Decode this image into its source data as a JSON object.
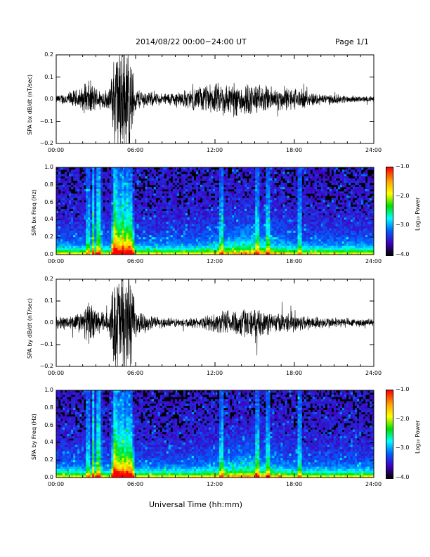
{
  "header": {
    "date_range": "2014/08/22  00:00−24:00 UT",
    "page": "Page 1/1"
  },
  "footer": {
    "xaxis_label": "Universal Time (hh:mm)"
  },
  "chart_data": [
    {
      "type": "line",
      "ylabel": "SPA bx dB/dt (nT/sec)",
      "x_ticks": [
        "00:00",
        "06:00",
        "12:00",
        "18:00",
        "24:00"
      ],
      "xlim": [
        0,
        24
      ],
      "y_ticks": [
        "0.2",
        "0.1",
        "0.0",
        "−0.1",
        "−0.2"
      ],
      "ylim": [
        -0.2,
        0.2
      ],
      "envelope": {
        "hours": [
          0,
          1,
          2,
          2.5,
          3,
          4,
          4.5,
          5,
          5.5,
          6,
          7,
          8,
          9,
          10,
          11,
          12,
          13,
          14,
          15,
          16,
          17,
          18,
          19,
          20,
          21,
          22,
          23,
          24
        ],
        "amplitude": [
          0.02,
          0.04,
          0.06,
          0.1,
          0.06,
          0.05,
          0.3,
          0.3,
          0.3,
          0.06,
          0.04,
          0.03,
          0.04,
          0.05,
          0.07,
          0.08,
          0.09,
          0.09,
          0.08,
          0.07,
          0.06,
          0.06,
          0.04,
          0.03,
          0.025,
          0.02,
          0.015,
          0.015
        ]
      }
    },
    {
      "type": "heatmap",
      "ylabel": "SPA bx Freq (Hz)",
      "x_ticks": [
        "00:00",
        "06:00",
        "12:00",
        "18:00",
        "24:00"
      ],
      "xlim": [
        0,
        24
      ],
      "y_ticks": [
        "1.0",
        "0.8",
        "0.6",
        "0.4",
        "0.2",
        "0.0"
      ],
      "ylim": [
        0,
        1
      ],
      "colorbar": {
        "label": "Log₁₀ Power",
        "ticks": [
          "−1.0",
          "−2.0",
          "−3.0",
          "−4.0"
        ],
        "range": [
          -4,
          -1
        ]
      }
    },
    {
      "type": "line",
      "ylabel": "SPA by dB/dt (nT/sec)",
      "x_ticks": [
        "00:00",
        "06:00",
        "12:00",
        "18:00",
        "24:00"
      ],
      "xlim": [
        0,
        24
      ],
      "y_ticks": [
        "0.2",
        "0.1",
        "0.0",
        "−0.1",
        "−0.2"
      ],
      "ylim": [
        -0.2,
        0.2
      ],
      "envelope": {
        "hours": [
          0,
          1,
          2,
          2.5,
          3,
          4,
          4.5,
          5,
          5.5,
          6,
          7,
          8,
          9,
          10,
          11,
          12,
          13,
          14,
          15,
          16,
          17,
          18,
          19,
          20,
          21,
          22,
          23,
          24
        ],
        "amplitude": [
          0.03,
          0.04,
          0.06,
          0.12,
          0.07,
          0.05,
          0.3,
          0.3,
          0.3,
          0.07,
          0.04,
          0.03,
          0.025,
          0.025,
          0.03,
          0.05,
          0.07,
          0.08,
          0.07,
          0.06,
          0.05,
          0.05,
          0.04,
          0.03,
          0.03,
          0.025,
          0.02,
          0.02
        ]
      }
    },
    {
      "type": "heatmap",
      "ylabel": "SPA by Freq (Hz)",
      "x_ticks": [
        "00:00",
        "06:00",
        "12:00",
        "18:00",
        "24:00"
      ],
      "xlim": [
        0,
        24
      ],
      "y_ticks": [
        "1.0",
        "0.8",
        "0.6",
        "0.4",
        "0.2",
        "0.0"
      ],
      "ylim": [
        0,
        1
      ],
      "colorbar": {
        "label": "Log₁₀ Power",
        "ticks": [
          "−1.0",
          "−2.0",
          "−3.0",
          "−4.0"
        ],
        "range": [
          -4,
          -1
        ]
      }
    }
  ]
}
